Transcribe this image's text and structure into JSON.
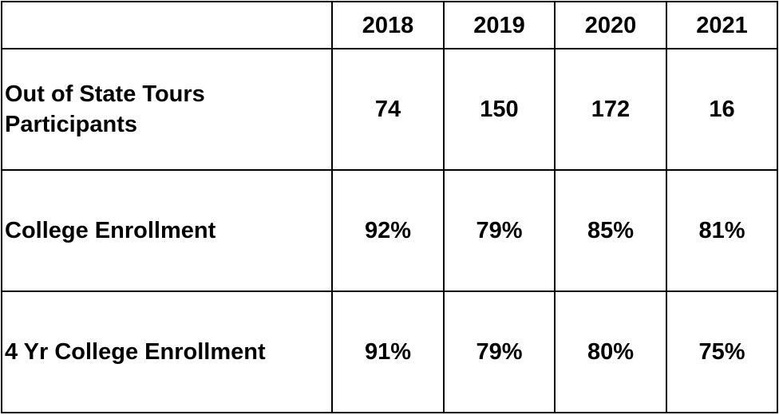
{
  "table": {
    "header": [
      "2018",
      "2019",
      "2020",
      "2021"
    ],
    "rows": [
      {
        "label": "Out of State Tours Participants",
        "cells": [
          "74",
          "150",
          "172",
          "16"
        ]
      },
      {
        "label": "College Enrollment",
        "cells": [
          "92%",
          "79%",
          "85%",
          "81%"
        ]
      },
      {
        "label": "4 Yr College Enrollment",
        "cells": [
          "91%",
          "79%",
          "80%",
          "75%"
        ]
      }
    ]
  }
}
